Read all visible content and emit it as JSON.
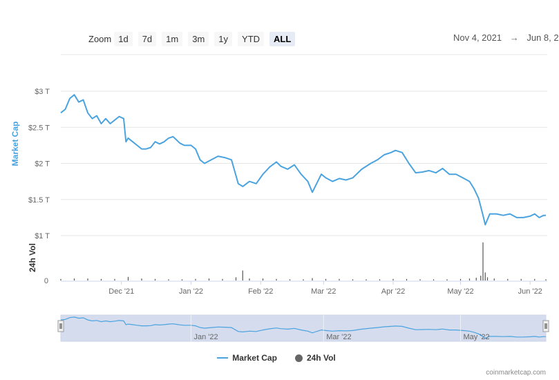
{
  "toolbar": {
    "zoom_label": "Zoom",
    "buttons": [
      "1d",
      "7d",
      "1m",
      "3m",
      "1y",
      "YTD",
      "ALL"
    ],
    "active": "ALL",
    "date_from": "Nov 4, 2021",
    "date_arrow": "→",
    "date_to": "Jun 8, 2"
  },
  "legend": {
    "market_cap": "Market Cap",
    "vol": "24h Vol"
  },
  "credits": "coinmarketcap.com",
  "colors": {
    "line": "#4aa3df",
    "volume": "#555555",
    "navigator_fill": "#ccd6eb",
    "grid": "#e6e6e6"
  },
  "chart_data": {
    "type": "line",
    "ylabel": "Market Cap",
    "ylim": [
      1.0,
      3.0
    ],
    "y_ticks": [
      "$1 T",
      "$1.5 T",
      "$2 T",
      "$2.5 T",
      "$3 T"
    ],
    "x_ticks": [
      "Dec '21",
      "Jan '22",
      "Feb '22",
      "Mar '22",
      "Apr '22",
      "May '22",
      "Jun '22"
    ],
    "series": [
      {
        "name": "Market Cap",
        "unit": "trillion USD",
        "x": [
          "2021-11-04",
          "2021-11-06",
          "2021-11-08",
          "2021-11-10",
          "2021-11-12",
          "2021-11-14",
          "2021-11-16",
          "2021-11-18",
          "2021-11-20",
          "2021-11-22",
          "2021-11-24",
          "2021-11-26",
          "2021-11-28",
          "2021-11-30",
          "2021-12-02",
          "2021-12-03",
          "2021-12-04",
          "2021-12-06",
          "2021-12-08",
          "2021-12-10",
          "2021-12-12",
          "2021-12-14",
          "2021-12-16",
          "2021-12-18",
          "2021-12-20",
          "2021-12-22",
          "2021-12-24",
          "2021-12-27",
          "2021-12-29",
          "2022-01-01",
          "2022-01-03",
          "2022-01-05",
          "2022-01-07",
          "2022-01-10",
          "2022-01-13",
          "2022-01-16",
          "2022-01-19",
          "2022-01-22",
          "2022-01-24",
          "2022-01-27",
          "2022-01-30",
          "2022-02-02",
          "2022-02-05",
          "2022-02-08",
          "2022-02-10",
          "2022-02-13",
          "2022-02-16",
          "2022-02-19",
          "2022-02-22",
          "2022-02-24",
          "2022-02-28",
          "2022-03-02",
          "2022-03-05",
          "2022-03-08",
          "2022-03-11",
          "2022-03-14",
          "2022-03-18",
          "2022-03-22",
          "2022-03-25",
          "2022-03-28",
          "2022-03-31",
          "2022-04-02",
          "2022-04-05",
          "2022-04-08",
          "2022-04-11",
          "2022-04-14",
          "2022-04-17",
          "2022-04-20",
          "2022-04-23",
          "2022-04-26",
          "2022-04-29",
          "2022-05-02",
          "2022-05-05",
          "2022-05-07",
          "2022-05-09",
          "2022-05-10",
          "2022-05-11",
          "2022-05-12",
          "2022-05-14",
          "2022-05-17",
          "2022-05-20",
          "2022-05-23",
          "2022-05-26",
          "2022-05-29",
          "2022-06-01",
          "2022-06-03",
          "2022-06-05",
          "2022-06-07",
          "2022-06-08"
        ],
        "values": [
          2.7,
          2.75,
          2.9,
          2.95,
          2.85,
          2.88,
          2.7,
          2.62,
          2.66,
          2.55,
          2.62,
          2.55,
          2.6,
          2.65,
          2.62,
          2.3,
          2.35,
          2.3,
          2.25,
          2.2,
          2.2,
          2.22,
          2.3,
          2.27,
          2.3,
          2.35,
          2.37,
          2.28,
          2.25,
          2.25,
          2.2,
          2.05,
          2.0,
          2.05,
          2.1,
          2.08,
          2.05,
          1.72,
          1.68,
          1.75,
          1.72,
          1.85,
          1.95,
          2.02,
          1.96,
          1.92,
          1.98,
          1.85,
          1.75,
          1.6,
          1.85,
          1.8,
          1.75,
          1.79,
          1.77,
          1.8,
          1.92,
          2.0,
          2.05,
          2.12,
          2.15,
          2.18,
          2.15,
          2.0,
          1.87,
          1.88,
          1.9,
          1.87,
          1.93,
          1.85,
          1.85,
          1.8,
          1.75,
          1.65,
          1.52,
          1.4,
          1.28,
          1.15,
          1.3,
          1.3,
          1.28,
          1.3,
          1.25,
          1.25,
          1.27,
          1.3,
          1.25,
          1.28,
          1.28
        ]
      },
      {
        "name": "24h Vol",
        "unit": "relative",
        "x": [
          "2021-11-04",
          "2021-11-10",
          "2021-11-16",
          "2021-11-22",
          "2021-11-28",
          "2021-12-04",
          "2021-12-10",
          "2021-12-16",
          "2021-12-22",
          "2021-12-28",
          "2022-01-03",
          "2022-01-09",
          "2022-01-15",
          "2022-01-21",
          "2022-01-24",
          "2022-01-27",
          "2022-02-02",
          "2022-02-08",
          "2022-02-14",
          "2022-02-20",
          "2022-02-24",
          "2022-03-02",
          "2022-03-08",
          "2022-03-14",
          "2022-03-20",
          "2022-03-26",
          "2022-04-01",
          "2022-04-07",
          "2022-04-13",
          "2022-04-19",
          "2022-04-25",
          "2022-05-01",
          "2022-05-05",
          "2022-05-08",
          "2022-05-10",
          "2022-05-11",
          "2022-05-12",
          "2022-05-13",
          "2022-05-16",
          "2022-05-22",
          "2022-05-28",
          "2022-06-03",
          "2022-06-08"
        ],
        "values": [
          0.04,
          0.05,
          0.05,
          0.04,
          0.04,
          0.09,
          0.05,
          0.04,
          0.03,
          0.03,
          0.04,
          0.05,
          0.04,
          0.08,
          0.25,
          0.05,
          0.05,
          0.04,
          0.03,
          0.03,
          0.06,
          0.04,
          0.04,
          0.03,
          0.03,
          0.03,
          0.04,
          0.04,
          0.03,
          0.03,
          0.03,
          0.04,
          0.05,
          0.07,
          0.12,
          0.95,
          0.2,
          0.08,
          0.05,
          0.04,
          0.04,
          0.04,
          0.03
        ]
      }
    ],
    "navigator_ticks": [
      "Jan '22",
      "Mar '22",
      "May '22"
    ]
  }
}
